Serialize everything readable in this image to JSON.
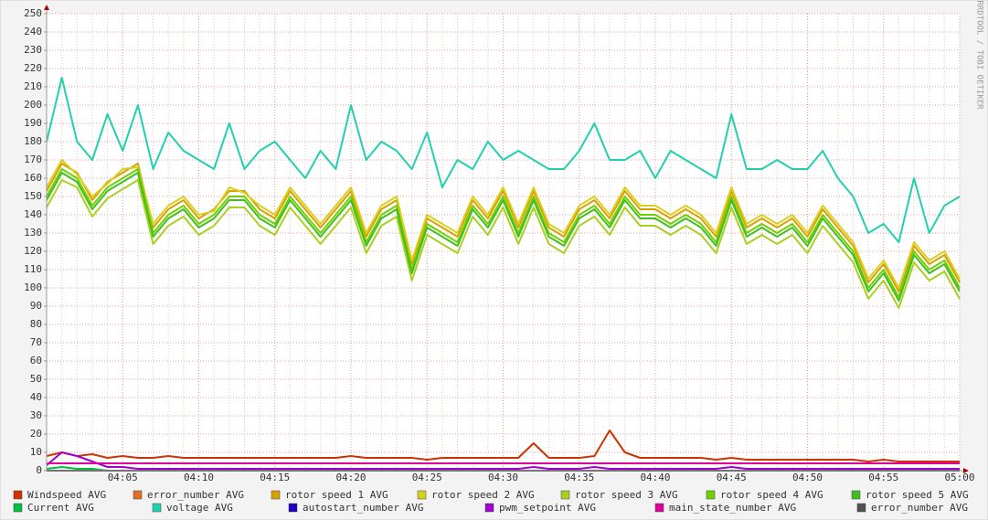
{
  "chart_data": {
    "type": "line",
    "watermark": "RRDTOOL / TOBI OETIKER",
    "x": [
      "04:00",
      "04:01",
      "04:02",
      "04:03",
      "04:04",
      "04:05",
      "04:06",
      "04:07",
      "04:08",
      "04:09",
      "04:10",
      "04:11",
      "04:12",
      "04:13",
      "04:14",
      "04:15",
      "04:16",
      "04:17",
      "04:18",
      "04:19",
      "04:20",
      "04:21",
      "04:22",
      "04:23",
      "04:24",
      "04:25",
      "04:26",
      "04:27",
      "04:28",
      "04:29",
      "04:30",
      "04:31",
      "04:32",
      "04:33",
      "04:34",
      "04:35",
      "04:36",
      "04:37",
      "04:38",
      "04:39",
      "04:40",
      "04:41",
      "04:42",
      "04:43",
      "04:44",
      "04:45",
      "04:46",
      "04:47",
      "04:48",
      "04:49",
      "04:50",
      "04:51",
      "04:52",
      "04:53",
      "04:54",
      "04:55",
      "04:56",
      "04:57",
      "04:58",
      "04:59",
      "05:00"
    ],
    "xlim": [
      "04:00",
      "05:00"
    ],
    "xticks": [
      "04:05",
      "04:10",
      "04:15",
      "04:20",
      "04:25",
      "04:30",
      "04:35",
      "04:40",
      "04:45",
      "04:50",
      "04:55",
      "05:00"
    ],
    "ylim": [
      0,
      250
    ],
    "yticks": [
      0,
      10,
      20,
      30,
      40,
      50,
      60,
      70,
      80,
      90,
      100,
      110,
      120,
      130,
      140,
      150,
      160,
      170,
      180,
      190,
      200,
      210,
      220,
      230,
      240,
      250
    ],
    "grid": true,
    "series": [
      {
        "name": "Windspeed AVG",
        "color": "#cc3300",
        "values": [
          8,
          10,
          8,
          9,
          7,
          8,
          7,
          7,
          8,
          7,
          7,
          7,
          7,
          7,
          7,
          7,
          7,
          7,
          7,
          7,
          8,
          7,
          7,
          7,
          7,
          6,
          7,
          7,
          7,
          7,
          7,
          7,
          15,
          7,
          7,
          7,
          8,
          22,
          10,
          7,
          7,
          7,
          7,
          7,
          6,
          7,
          6,
          6,
          6,
          6,
          6,
          6,
          6,
          6,
          5,
          6,
          5,
          5,
          5,
          5,
          5
        ]
      },
      {
        "name": "error_number AVG",
        "color": "#e07020",
        "values": [
          0,
          0,
          0,
          0,
          0,
          0,
          0,
          0,
          0,
          0,
          0,
          0,
          0,
          0,
          0,
          0,
          0,
          0,
          0,
          0,
          0,
          0,
          0,
          0,
          0,
          0,
          0,
          0,
          0,
          0,
          0,
          0,
          0,
          0,
          0,
          0,
          0,
          0,
          0,
          0,
          0,
          0,
          0,
          0,
          0,
          0,
          0,
          0,
          0,
          0,
          0,
          0,
          0,
          0,
          0,
          0,
          0,
          0,
          0,
          0,
          0
        ]
      },
      {
        "name": "rotor speed 1 AVG",
        "color": "#d8a000",
        "values": [
          153,
          168,
          163,
          148,
          158,
          163,
          168,
          133,
          143,
          148,
          138,
          143,
          153,
          153,
          143,
          138,
          153,
          143,
          133,
          143,
          153,
          128,
          143,
          148,
          113,
          138,
          133,
          128,
          148,
          138,
          153,
          133,
          153,
          133,
          128,
          143,
          148,
          138,
          153,
          143,
          143,
          138,
          143,
          138,
          128,
          153,
          133,
          138,
          133,
          138,
          128,
          143,
          133,
          123,
          103,
          113,
          98,
          123,
          113,
          118,
          103
        ]
      },
      {
        "name": "rotor speed 2 AVG",
        "color": "#d8d020",
        "values": [
          155,
          170,
          162,
          150,
          157,
          165,
          166,
          135,
          145,
          150,
          140,
          142,
          155,
          152,
          145,
          140,
          155,
          145,
          135,
          145,
          155,
          130,
          145,
          150,
          115,
          140,
          135,
          130,
          150,
          140,
          155,
          135,
          155,
          135,
          130,
          145,
          150,
          140,
          155,
          145,
          145,
          140,
          145,
          140,
          130,
          155,
          135,
          140,
          135,
          140,
          130,
          145,
          135,
          125,
          105,
          115,
          100,
          125,
          115,
          120,
          105
        ]
      },
      {
        "name": "rotor speed 3 AVG",
        "color": "#a8d020",
        "values": [
          144,
          159,
          155,
          139,
          149,
          154,
          159,
          124,
          134,
          139,
          129,
          134,
          144,
          144,
          134,
          129,
          144,
          134,
          124,
          134,
          144,
          119,
          134,
          139,
          104,
          129,
          124,
          119,
          139,
          129,
          144,
          124,
          144,
          124,
          119,
          134,
          139,
          129,
          144,
          134,
          134,
          129,
          134,
          129,
          119,
          144,
          124,
          129,
          124,
          129,
          119,
          134,
          124,
          114,
          94,
          104,
          89,
          114,
          104,
          109,
          94
        ]
      },
      {
        "name": "rotor speed 4 AVG",
        "color": "#70d000",
        "values": [
          150,
          165,
          160,
          145,
          155,
          160,
          165,
          130,
          140,
          145,
          135,
          140,
          150,
          150,
          140,
          135,
          150,
          140,
          130,
          140,
          150,
          125,
          140,
          145,
          110,
          135,
          130,
          125,
          145,
          135,
          150,
          130,
          150,
          130,
          125,
          140,
          145,
          135,
          150,
          140,
          140,
          135,
          140,
          135,
          125,
          150,
          130,
          135,
          130,
          135,
          125,
          140,
          130,
          120,
          100,
          110,
          95,
          120,
          110,
          115,
          100
        ]
      },
      {
        "name": "rotor speed 5 AVG",
        "color": "#40c020",
        "values": [
          148,
          163,
          158,
          143,
          153,
          158,
          163,
          128,
          138,
          143,
          133,
          138,
          148,
          148,
          138,
          133,
          148,
          138,
          128,
          138,
          148,
          123,
          138,
          143,
          108,
          133,
          128,
          123,
          143,
          133,
          148,
          128,
          148,
          128,
          123,
          138,
          143,
          133,
          148,
          138,
          138,
          133,
          138,
          133,
          123,
          148,
          128,
          133,
          128,
          133,
          123,
          138,
          128,
          118,
          98,
          108,
          93,
          118,
          108,
          113,
          98
        ]
      },
      {
        "name": "Current AVG",
        "color": "#00c040",
        "values": [
          1,
          2,
          1,
          1,
          0,
          0,
          0,
          0,
          0,
          0,
          0,
          0,
          0,
          0,
          0,
          0,
          0,
          0,
          0,
          0,
          0,
          0,
          0,
          0,
          0,
          0,
          0,
          0,
          0,
          0,
          0,
          0,
          0,
          0,
          0,
          0,
          0,
          0,
          0,
          0,
          0,
          0,
          0,
          0,
          0,
          0,
          0,
          0,
          0,
          0,
          0,
          0,
          0,
          0,
          0,
          0,
          0,
          0,
          0,
          0,
          0
        ]
      },
      {
        "name": "voltage AVG",
        "color": "#20d0b0",
        "values": [
          180,
          215,
          180,
          170,
          195,
          175,
          200,
          165,
          185,
          175,
          170,
          165,
          190,
          165,
          175,
          180,
          170,
          160,
          175,
          165,
          200,
          170,
          180,
          175,
          165,
          185,
          155,
          170,
          165,
          180,
          170,
          175,
          170,
          165,
          165,
          175,
          190,
          170,
          170,
          175,
          160,
          175,
          170,
          165,
          160,
          195,
          165,
          165,
          170,
          165,
          165,
          175,
          160,
          150,
          130,
          135,
          125,
          160,
          130,
          145,
          150
        ]
      },
      {
        "name": "autostart_number AVG",
        "color": "#2000c0",
        "values": [
          0,
          0,
          0,
          0,
          0,
          0,
          0,
          0,
          0,
          0,
          0,
          0,
          0,
          0,
          0,
          0,
          0,
          0,
          0,
          0,
          0,
          0,
          0,
          0,
          0,
          0,
          0,
          0,
          0,
          0,
          0,
          0,
          0,
          0,
          0,
          0,
          0,
          0,
          0,
          0,
          0,
          0,
          0,
          0,
          0,
          0,
          0,
          0,
          0,
          0,
          0,
          0,
          0,
          0,
          0,
          0,
          0,
          0,
          0,
          0,
          0
        ]
      },
      {
        "name": "pwm_setpoint AVG",
        "color": "#a000d0",
        "values": [
          3,
          10,
          8,
          5,
          2,
          2,
          1,
          1,
          1,
          1,
          1,
          1,
          1,
          1,
          1,
          1,
          1,
          1,
          1,
          1,
          1,
          1,
          1,
          1,
          1,
          1,
          1,
          1,
          1,
          1,
          1,
          1,
          2,
          1,
          1,
          1,
          2,
          1,
          1,
          1,
          1,
          1,
          1,
          1,
          1,
          2,
          1,
          1,
          1,
          1,
          1,
          1,
          1,
          1,
          1,
          1,
          1,
          1,
          1,
          1,
          1
        ]
      },
      {
        "name": "main_state_number AVG",
        "color": "#e000a0",
        "values": [
          4,
          4,
          4,
          4,
          4,
          4,
          4,
          4,
          4,
          4,
          4,
          4,
          4,
          4,
          4,
          4,
          4,
          4,
          4,
          4,
          4,
          4,
          4,
          4,
          4,
          4,
          4,
          4,
          4,
          4,
          4,
          4,
          4,
          4,
          4,
          4,
          4,
          4,
          4,
          4,
          4,
          4,
          4,
          4,
          4,
          4,
          4,
          4,
          4,
          4,
          4,
          4,
          4,
          4,
          4,
          4,
          4,
          4,
          4,
          4,
          4
        ]
      },
      {
        "name": "error_number AVG",
        "color": "#505050",
        "values": [
          0,
          0,
          0,
          0,
          0,
          0,
          0,
          0,
          0,
          0,
          0,
          0,
          0,
          0,
          0,
          0,
          0,
          0,
          0,
          0,
          0,
          0,
          0,
          0,
          0,
          0,
          0,
          0,
          0,
          0,
          0,
          0,
          0,
          0,
          0,
          0,
          0,
          0,
          0,
          0,
          0,
          0,
          0,
          0,
          0,
          0,
          0,
          0,
          0,
          0,
          0,
          0,
          0,
          0,
          0,
          0,
          0,
          0,
          0,
          0,
          0
        ]
      }
    ]
  }
}
